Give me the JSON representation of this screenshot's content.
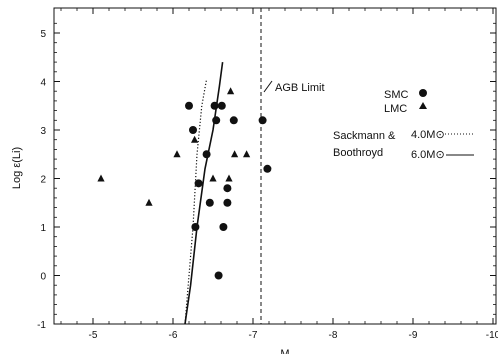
{
  "chart_data": {
    "type": "scatter",
    "xlabel": "M",
    "ylabel": "Log ε(Li)",
    "xlim": [
      -4.5,
      -10
    ],
    "ylim": [
      -1,
      5.5
    ],
    "x_direction": "reversed",
    "xticks": [
      -5,
      -6,
      -7,
      -8,
      -9,
      -10
    ],
    "yticks": [
      -1,
      0,
      1,
      2,
      3,
      4,
      5
    ],
    "grid": false,
    "series": [
      {
        "name": "SMC",
        "marker": "circle",
        "points": [
          [
            -6.2,
            3.5
          ],
          [
            -6.25,
            3.0
          ],
          [
            -6.28,
            1.0
          ],
          [
            -6.32,
            1.9
          ],
          [
            -6.42,
            2.5
          ],
          [
            -6.46,
            1.5
          ],
          [
            -6.52,
            3.5
          ],
          [
            -6.54,
            3.2
          ],
          [
            -6.57,
            0.0
          ],
          [
            -6.61,
            3.5
          ],
          [
            -6.63,
            1.0
          ],
          [
            -6.68,
            1.8
          ],
          [
            -6.68,
            1.5
          ],
          [
            -6.76,
            3.2
          ],
          [
            -7.12,
            3.2
          ],
          [
            -7.18,
            2.2
          ]
        ]
      },
      {
        "name": "LMC",
        "marker": "triangle",
        "points": [
          [
            -5.1,
            2.0
          ],
          [
            -5.7,
            1.5
          ],
          [
            -6.05,
            2.5
          ],
          [
            -6.27,
            2.8
          ],
          [
            -6.5,
            2.0
          ],
          [
            -6.7,
            2.0
          ],
          [
            -6.72,
            3.8
          ],
          [
            -6.77,
            2.5
          ],
          [
            -6.92,
            2.5
          ]
        ]
      }
    ],
    "tracks": [
      {
        "name": "4.0M⊙",
        "style": "dotted",
        "points": [
          [
            -6.15,
            -1.0
          ],
          [
            -6.25,
            1.0
          ],
          [
            -6.3,
            2.5
          ],
          [
            -6.36,
            3.5
          ],
          [
            -6.42,
            4.05
          ]
        ]
      },
      {
        "name": "6.0M⊙",
        "style": "solid",
        "points": [
          [
            -6.15,
            -1.0
          ],
          [
            -6.22,
            -0.2
          ],
          [
            -6.3,
            1.0
          ],
          [
            -6.4,
            2.2
          ],
          [
            -6.5,
            3.0
          ],
          [
            -6.58,
            3.9
          ],
          [
            -6.62,
            4.4
          ]
        ]
      }
    ],
    "reference_lines": [
      {
        "x": -7.1,
        "style": "dashed",
        "label": "AGB Limit"
      }
    ],
    "legend": {
      "placement": "right",
      "smc": "SMC",
      "lmc": "LMC",
      "models_line1": "Sackmann &",
      "models_line2": "Boothroyd",
      "track_4": "4.0M⊙",
      "track_6": "6.0M⊙"
    }
  }
}
